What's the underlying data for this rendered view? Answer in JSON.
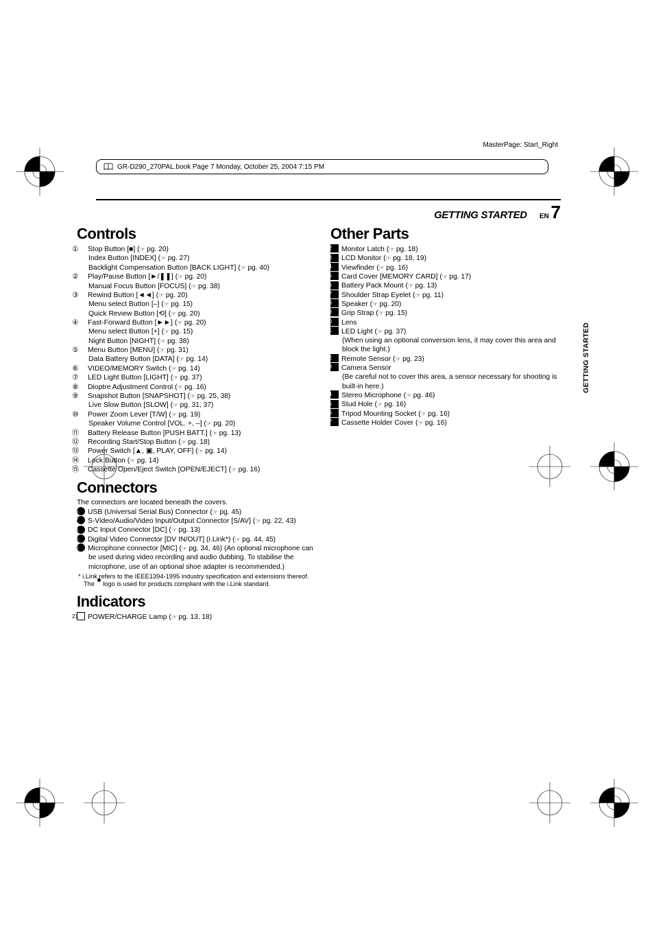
{
  "masterpage": "MasterPage: Start_Right",
  "print_header": "GR-D290_270PAL.book  Page 7  Monday, October 25, 2004  7:15 PM",
  "header": {
    "section": "GETTING STARTED",
    "lang": "EN",
    "page": "7"
  },
  "sidebar": "GETTING STARTED",
  "left": {
    "controls_title": "Controls",
    "controls": [
      {
        "n": "①",
        "lines": [
          "Stop Button [■] (|pg. 20)",
          "Index Button [INDEX] (|pg. 27)",
          "Backlight Compensation Button [BACK LIGHT] (|pg. 40)"
        ]
      },
      {
        "n": "②",
        "lines": [
          "Play/Pause Button [►/❚❚] (|pg. 20)",
          "Manual Focus Button [FOCUS] (|pg. 38)"
        ]
      },
      {
        "n": "③",
        "lines": [
          "Rewind Button [◄◄] (|pg. 20)",
          "Menu select Button [–] (|pg. 15)",
          "Quick Review Button [⟲] (|pg. 20)"
        ]
      },
      {
        "n": "④",
        "lines": [
          "Fast-Forward Button [►►] (|pg. 20)",
          "Menu select Button [+] (|pg. 15)",
          "Night Button [NIGHT] (|pg. 38)"
        ]
      },
      {
        "n": "⑤",
        "lines": [
          "Menu Button [MENU] (|pg. 31)",
          "Data Battery Button [DATA] (|pg. 14)"
        ]
      },
      {
        "n": "⑥",
        "lines": [
          "VIDEO/MEMORY Switch (|pg. 14)"
        ]
      },
      {
        "n": "⑦",
        "lines": [
          "LED Light Button [LIGHT] (|pg. 37)"
        ]
      },
      {
        "n": "⑧",
        "lines": [
          "Dioptre Adjustment Control (|pg. 16)"
        ]
      },
      {
        "n": "⑨",
        "lines": [
          "Snapshot Button [SNAPSHOT] (|pg. 25, 38)",
          "Live Slow Button [SLOW] (|pg. 31, 37)"
        ]
      },
      {
        "n": "⑩",
        "lines": [
          "Power Zoom Lever [T/W] (|pg. 19)",
          "Speaker Volume Control [VOL. +, –] (|pg. 20)"
        ]
      },
      {
        "n": "⑪",
        "lines": [
          "Battery Release Button [PUSH BATT.] (|pg. 13)"
        ]
      },
      {
        "n": "⑫",
        "lines": [
          "Recording Start/Stop Button (|pg. 18)"
        ]
      },
      {
        "n": "⑬",
        "lines": [
          "Power Switch [▲, ▣, PLAY, OFF] (|pg. 14)"
        ]
      },
      {
        "n": "⑭",
        "lines": [
          "Lock Button (|pg. 14)"
        ]
      },
      {
        "n": "⑮",
        "lines": [
          "Cassette Open/Eject Switch [OPEN/EJECT] (|pg. 16)"
        ]
      }
    ],
    "connectors_title": "Connectors",
    "connectors_intro": "The connectors are located beneath the covers.",
    "connectors": [
      {
        "n": "16",
        "lines": [
          "USB (Universal Serial Bus) Connector (|pg. 45)"
        ]
      },
      {
        "n": "17",
        "lines": [
          "S-Video/Audio/Video Input/Output Connector [S/AV] (|pg. 22, 43)"
        ]
      },
      {
        "n": "18",
        "lines": [
          "DC Input Connector [DC] (|pg. 13)"
        ]
      },
      {
        "n": "19",
        "lines": [
          "Digital Video Connector [DV IN/OUT] (i.Link*) (|pg. 44, 45)"
        ]
      },
      {
        "n": "20",
        "lines": [
          "Microphone connector [MIC] (|pg. 34, 46) (An optional microphone can be used during video recording and audio dubbing. To stabilise the microphone, use of an optional shoe adapter is recommended.)"
        ]
      }
    ],
    "footnote": "* i.Link refers to the IEEE1394-1995 industry specification and extensions thereof. The  logo is used for products compliant with the i.Link standard.",
    "indicators_title": "Indicators",
    "indicators": [
      {
        "n": "21",
        "lines": [
          "POWER/CHARGE Lamp (|pg. 13, 18)"
        ]
      }
    ]
  },
  "right": {
    "other_title": "Other Parts",
    "other": [
      {
        "n": "22",
        "lines": [
          "Monitor Latch (|pg. 18)"
        ]
      },
      {
        "n": "23",
        "lines": [
          "LCD Monitor (|pg. 18, 19)"
        ]
      },
      {
        "n": "24",
        "lines": [
          "Viewfinder (|pg. 16)"
        ]
      },
      {
        "n": "25",
        "lines": [
          "Card Cover [MEMORY CARD] (|pg. 17)"
        ]
      },
      {
        "n": "26",
        "lines": [
          "Battery Pack Mount (|pg. 13)"
        ]
      },
      {
        "n": "27",
        "lines": [
          "Shoulder Strap Eyelet (|pg. 11)"
        ]
      },
      {
        "n": "28",
        "lines": [
          "Speaker (|pg. 20)"
        ]
      },
      {
        "n": "29",
        "lines": [
          "Grip Strap (|pg. 15)"
        ]
      },
      {
        "n": "30",
        "lines": [
          "Lens"
        ]
      },
      {
        "n": "31",
        "lines": [
          "LED Light (|pg. 37)",
          "(When using an optional conversion lens, it may cover this area and block the light.)"
        ]
      },
      {
        "n": "32",
        "lines": [
          "Remote Sensor (|pg. 23)"
        ]
      },
      {
        "n": "33",
        "lines": [
          "Camera Sensor",
          "(Be careful not to cover this area, a sensor necessary for shooting is built-in here.)"
        ]
      },
      {
        "n": "34",
        "lines": [
          "Stereo Microphone (|pg. 46)"
        ]
      },
      {
        "n": "35",
        "lines": [
          "Stud Hole (|pg. 16)"
        ]
      },
      {
        "n": "36",
        "lines": [
          "Tripod Mounting Socket (|pg. 16)"
        ]
      },
      {
        "n": "37",
        "lines": [
          "Cassette Holder Cover (|pg. 16)"
        ]
      }
    ]
  },
  "colors": {
    "text": "#000000",
    "bg": "#ffffff"
  }
}
